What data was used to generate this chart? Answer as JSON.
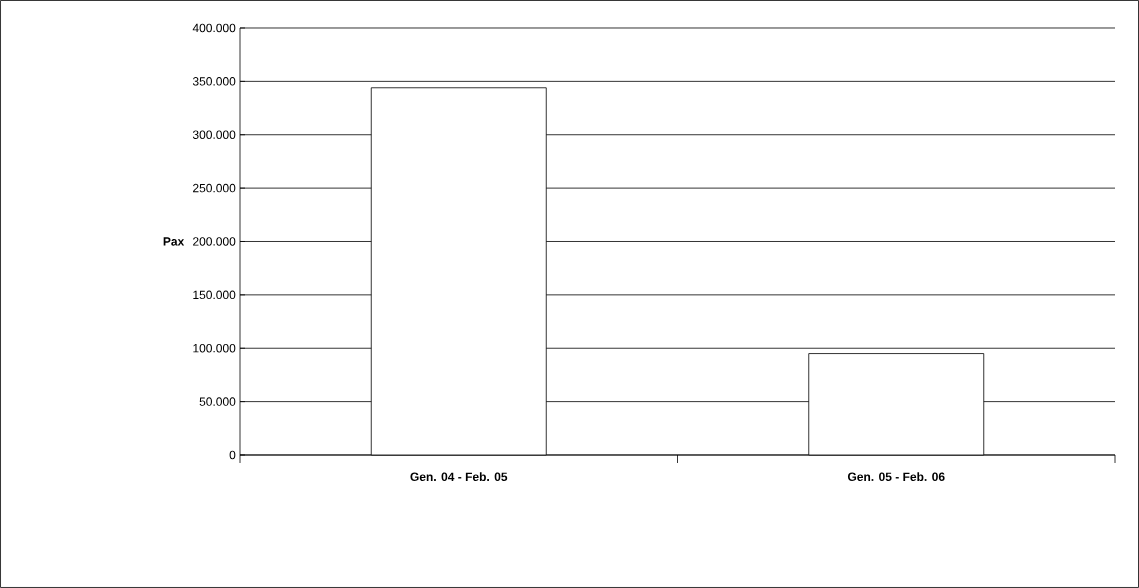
{
  "chart_data": {
    "type": "bar",
    "ylabel": "Pax",
    "categories": [
      "Gen. 04 - Feb. 05",
      "Gen. 05 - Feb. 06"
    ],
    "values": [
      344000,
      95000
    ],
    "color": "#ffffff",
    "ylim": [
      0,
      400000
    ],
    "yticks": [
      {
        "value": 0,
        "label": "0"
      },
      {
        "value": 50000,
        "label": "50.000"
      },
      {
        "value": 100000,
        "label": "100.000"
      },
      {
        "value": 150000,
        "label": "150.000"
      },
      {
        "value": 200000,
        "label": "200.000"
      },
      {
        "value": 250000,
        "label": "250.000"
      },
      {
        "value": 300000,
        "label": "300.000"
      },
      {
        "value": 350000,
        "label": "350.000"
      },
      {
        "value": 400000,
        "label": "400.000"
      }
    ],
    "grid": "y"
  }
}
